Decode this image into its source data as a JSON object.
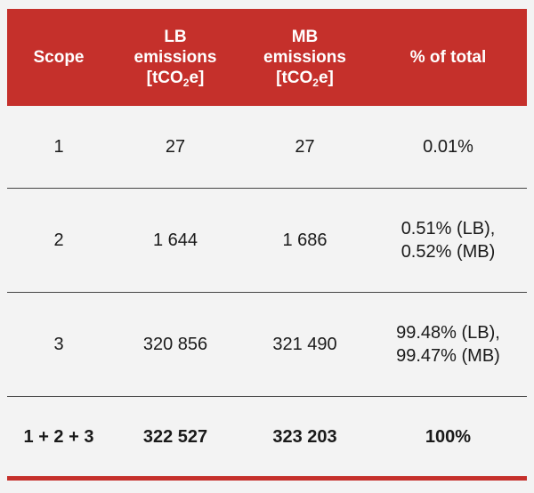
{
  "table": {
    "headers": {
      "scope": "Scope",
      "lb_line1": "LB",
      "lb_line2": "emissions",
      "lb_unit_pre": "[tCO",
      "lb_unit_sub": "2",
      "lb_unit_post": "e]",
      "mb_line1": "MB",
      "mb_line2": "emissions",
      "mb_unit_pre": "[tCO",
      "mb_unit_sub": "2",
      "mb_unit_post": "e]",
      "pct": "% of total"
    },
    "rows": [
      {
        "scope": "1",
        "lb": "27",
        "mb": "27",
        "pct_line1": "0.01%",
        "pct_line2": ""
      },
      {
        "scope": "2",
        "lb": "1 644",
        "mb": "1 686",
        "pct_line1": "0.51% (LB),",
        "pct_line2": "0.52% (MB)"
      },
      {
        "scope": "3",
        "lb": "320 856",
        "mb": "321 490",
        "pct_line1": "99.48% (LB),",
        "pct_line2": "99.47% (MB)"
      }
    ],
    "total": {
      "scope": "1 + 2 + 3",
      "lb": "322 527",
      "mb": "323 203",
      "pct": "100%"
    },
    "colors": {
      "accent": "#c5302b",
      "background": "#f3f3f3",
      "text": "#1a1a1a",
      "divider": "#444444"
    }
  }
}
